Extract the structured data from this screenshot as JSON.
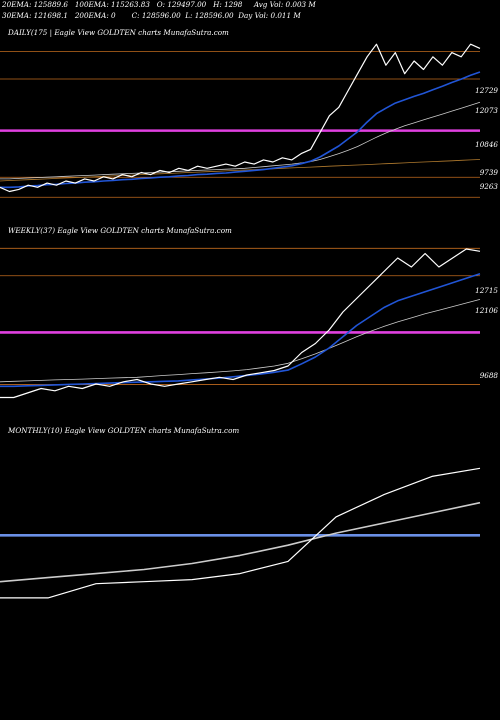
{
  "header": {
    "line1": [
      "20EMA: 125889.6",
      "100EMA: 115263.83",
      "O: 129497.00",
      "H: 1298",
      "Avg Vol: 0.003 M"
    ],
    "line2": [
      "30EMA: 121698.1",
      "200EMA: 0",
      "C: 128596.00",
      "L: 128596.00",
      "Day Vol: 0.011 M"
    ]
  },
  "chart_data": [
    {
      "type": "line",
      "title": "DAILY(175 | Eagle  View  GOLDTEN  charts MunafaSutra.com",
      "y_tick_labels": [
        "12729",
        "12073",
        "10846",
        "9739",
        "9263"
      ],
      "series": [
        {
          "color": "#ffffff",
          "values": [
            9500,
            9400,
            9450,
            9550,
            9500,
            9600,
            9550,
            9650,
            9600,
            9700,
            9650,
            9750,
            9700,
            9800,
            9750,
            9850,
            9800,
            9900,
            9850,
            9950,
            9900,
            10000,
            9950,
            10000,
            10050,
            10000,
            10100,
            10050,
            10150,
            10100,
            10200,
            10150,
            10300,
            10400,
            10800,
            11200,
            11400,
            11800,
            12200,
            12600,
            12900,
            12400,
            12700,
            12200,
            12500,
            12300,
            12600,
            12400,
            12700,
            12600,
            12900,
            12800
          ]
        },
        {
          "color": "#2155d6",
          "values": [
            9500,
            9500,
            9510,
            9530,
            9540,
            9560,
            9570,
            9590,
            9600,
            9620,
            9630,
            9650,
            9660,
            9680,
            9690,
            9710,
            9720,
            9740,
            9750,
            9770,
            9780,
            9800,
            9810,
            9830,
            9840,
            9860,
            9880,
            9900,
            9920,
            9950,
            9980,
            10010,
            10060,
            10120,
            10220,
            10350,
            10480,
            10650,
            10820,
            11050,
            11250,
            11380,
            11500,
            11580,
            11660,
            11730,
            11820,
            11900,
            11990,
            12070,
            12160,
            12240
          ]
        },
        {
          "color": "#cccccc",
          "values": [
            9700,
            9700,
            9710,
            9720,
            9730,
            9740,
            9750,
            9760,
            9770,
            9780,
            9790,
            9800,
            9810,
            9820,
            9830,
            9840,
            9850,
            9860,
            9870,
            9880,
            9890,
            9900,
            9910,
            9920,
            9930,
            9940,
            9950,
            9970,
            9990,
            10010,
            10030,
            10050,
            10080,
            10110,
            10160,
            10230,
            10300,
            10380,
            10470,
            10580,
            10690,
            10790,
            10880,
            10960,
            11030,
            11100,
            11170,
            11240,
            11310,
            11380,
            11450,
            11520
          ]
        },
        {
          "color": "#b07a2e",
          "values": [
            9650,
            9660,
            9670,
            9680,
            9690,
            9700,
            9710,
            9720,
            9730,
            9740,
            9750,
            9760,
            9770,
            9780,
            9790,
            9800,
            9810,
            9820,
            9830,
            9840,
            9850,
            9860,
            9870,
            9880,
            9890,
            9900,
            9910,
            9920,
            9930,
            9940,
            9950,
            9960,
            9970,
            9980,
            9990,
            10000,
            10010,
            10020,
            10030,
            10040,
            10050,
            10060,
            10070,
            10080,
            10090,
            10100,
            10110,
            10120,
            10130,
            10140,
            10150,
            10160
          ]
        }
      ],
      "y_range": [
        9150,
        13000
      ],
      "hlines": [
        {
          "value": 12729,
          "color": "#c06a1e"
        },
        {
          "value": 12073,
          "color": "#c06a1e"
        },
        {
          "value": 10846,
          "color": "#e040e0"
        },
        {
          "value": 9739,
          "color": "#c06a1e"
        },
        {
          "value": 9263,
          "color": "#c06a1e"
        }
      ]
    },
    {
      "type": "line",
      "title": "WEEKLY(37) Eagle  View  GOLDTEN  charts MunafaSutra.com",
      "y_tick_labels": [
        "12715",
        "12106",
        "9688"
      ],
      "series": [
        {
          "color": "#ffffff",
          "values": [
            9400,
            9400,
            9500,
            9600,
            9550,
            9650,
            9600,
            9700,
            9650,
            9750,
            9800,
            9700,
            9650,
            9700,
            9750,
            9800,
            9850,
            9800,
            9900,
            9950,
            10000,
            10100,
            10400,
            10600,
            10900,
            11300,
            11600,
            11900,
            12200,
            12500,
            12300,
            12600,
            12300,
            12500,
            12700,
            12650
          ]
        },
        {
          "color": "#2155d6",
          "values": [
            9650,
            9650,
            9660,
            9670,
            9680,
            9690,
            9700,
            9710,
            9720,
            9730,
            9740,
            9750,
            9760,
            9770,
            9790,
            9810,
            9830,
            9860,
            9890,
            9920,
            9960,
            10010,
            10150,
            10300,
            10500,
            10750,
            11000,
            11200,
            11400,
            11550,
            11650,
            11750,
            11850,
            11950,
            12050,
            12150
          ]
        },
        {
          "color": "#cccccc",
          "values": [
            9750,
            9760,
            9770,
            9780,
            9790,
            9800,
            9810,
            9820,
            9830,
            9840,
            9850,
            9870,
            9890,
            9910,
            9930,
            9950,
            9970,
            9990,
            10020,
            10060,
            10100,
            10160,
            10260,
            10370,
            10490,
            10620,
            10750,
            10870,
            10980,
            11080,
            11170,
            11260,
            11340,
            11420,
            11500,
            11580
          ]
        }
      ],
      "y_range": [
        9300,
        12900
      ],
      "hlines": [
        {
          "value": 12715,
          "color": "#c06a1e"
        },
        {
          "value": 12106,
          "color": "#c06a1e"
        },
        {
          "value": 10846,
          "color": "#e040e0"
        },
        {
          "value": 9688,
          "color": "#c06a1e"
        }
      ]
    },
    {
      "type": "line",
      "title": "MONTHLY(10) Eagle  View  GOLDTEN  charts MunafaSutra.com",
      "series": [
        {
          "color": "#ffffff",
          "values": [
            9300,
            9300,
            9650,
            9700,
            9750,
            9900,
            10200,
            11300,
            11850,
            12300,
            12500
          ]
        },
        {
          "color": "#cccccc",
          "values": [
            9700,
            9800,
            9900,
            10000,
            10150,
            10350,
            10600,
            10900,
            11150,
            11400,
            11650
          ]
        }
      ],
      "y_range": [
        9000,
        13200
      ],
      "hlines": [
        {
          "value": 10846,
          "color": "#6a8fe6"
        }
      ]
    }
  ]
}
